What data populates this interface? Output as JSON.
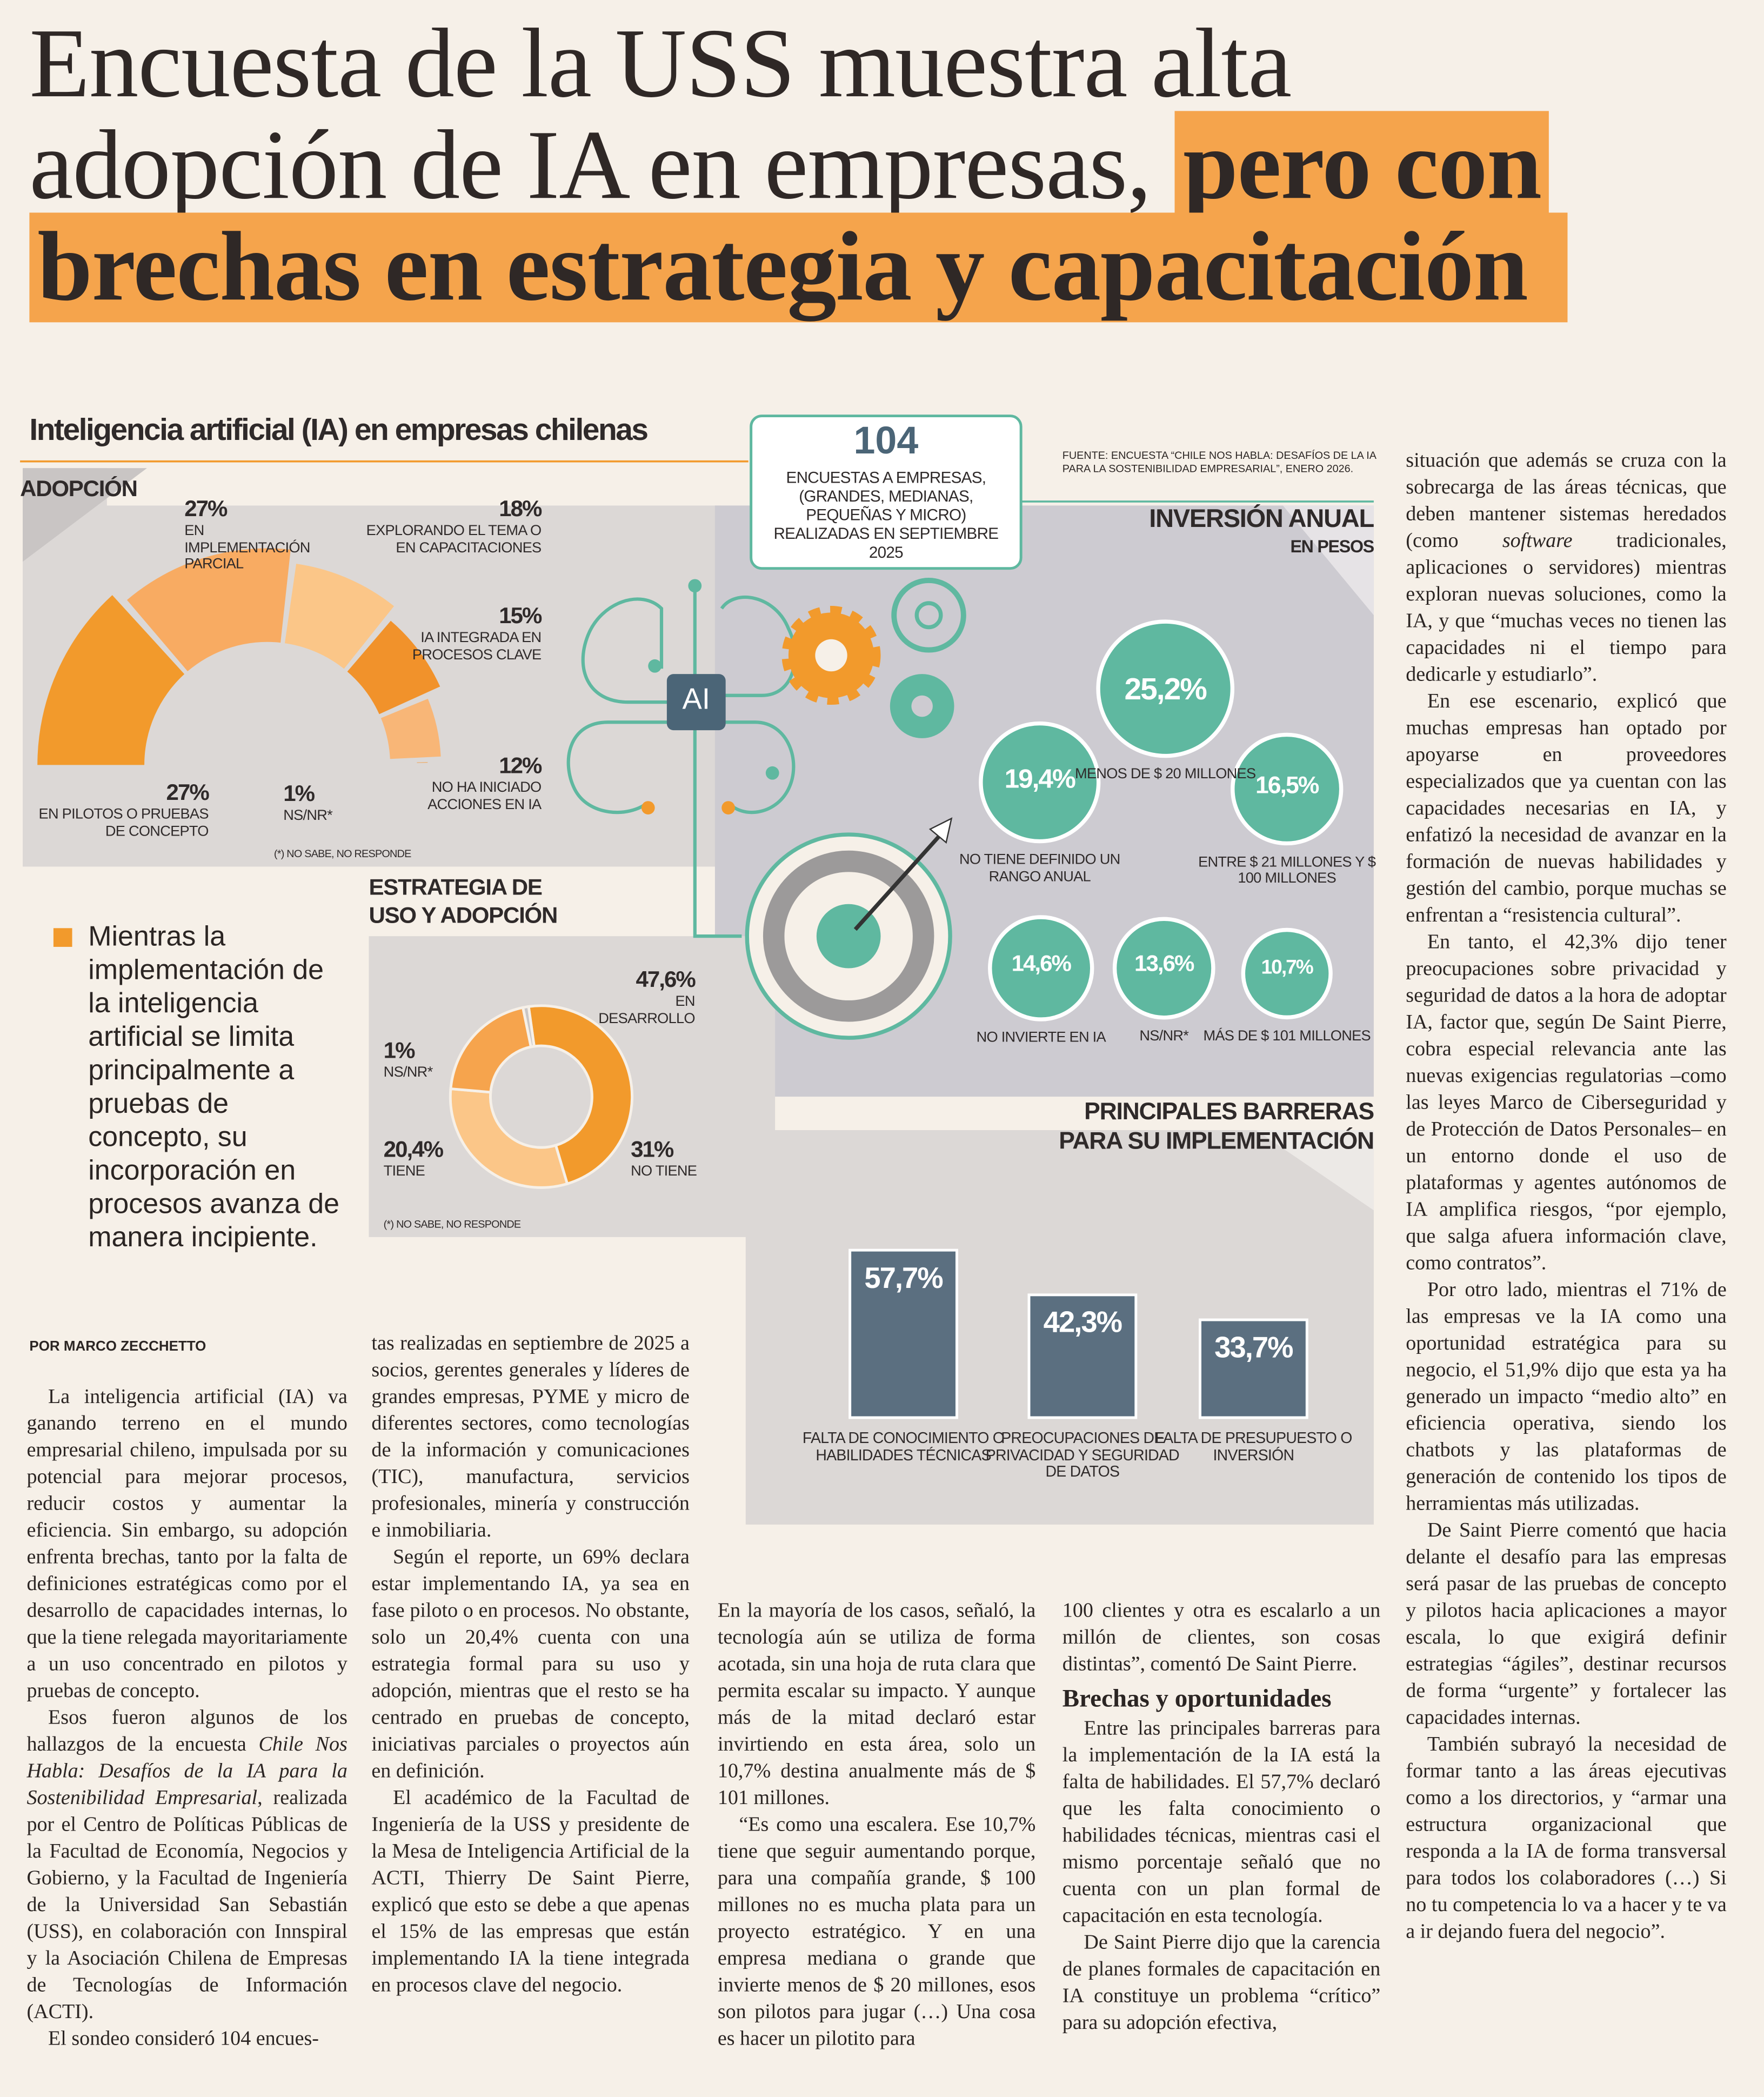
{
  "headline": {
    "lines": [
      "Encuesta de la USS muestra alta",
      "adopción de IA en empresas,"
    ],
    "highlight": [
      "pero con",
      "brechas en estrategia y capacitación"
    ]
  },
  "infographic": {
    "title": "Inteligencia artificial (IA) en empresas chilenas",
    "source": "FUENTE: ENCUESTA “CHILE NOS HABLA: DESAFÍOS DE LA IA PARA LA SOSTENIBILIDAD EMPRESARIAL”, ENERO 2026.",
    "survey": {
      "number": 104,
      "text": "ENCUESTAS A EMPRESAS, (GRANDES, MEDIANAS, PEQUEÑAS Y MICRO) REALIZADAS EN SEPTIEMBRE 2025"
    },
    "ai_label": "AI",
    "adoption": {
      "title": "ADOPCIÓN",
      "values": [
        27,
        27,
        18,
        15,
        12,
        1
      ],
      "value_labels": [
        "27%",
        "27%",
        "18%",
        "15%",
        "12%",
        "1%"
      ],
      "labels": [
        "EN PILOTOS O PRUEBAS DE CONCEPTO",
        "EN IMPLEMENTACIÓN PARCIAL",
        "EXPLORANDO EL TEMA O EN CAPACITACIONES",
        "IA INTEGRADA EN PROCESOS CLAVE",
        "NO HA INICIADO ACCIONES EN IA",
        "NS/NR*"
      ],
      "colors": [
        "#f29a2c",
        "#f8ab62",
        "#fbc688",
        "#f1922b",
        "#f8b677",
        "#f3a04a"
      ],
      "note": "(*) NO SABE, NO RESPONDE"
    },
    "strategy": {
      "title": "ESTRATEGIA DE USO Y ADOPCIÓN",
      "values": [
        47.6,
        31,
        20.4,
        1
      ],
      "value_labels": [
        "47,6%",
        "31%",
        "20,4%",
        "1%"
      ],
      "labels": [
        "EN DESARROLLO",
        "NO TIENE",
        "TIENE",
        "NS/NR*"
      ],
      "colors": [
        "#f29a2c",
        "#fbc688",
        "#f6a44d",
        "#c9c6c6"
      ],
      "note": "(*) NO SABE, NO RESPONDE"
    },
    "investment": {
      "title": "INVERSIÓN ANUAL",
      "subtitle": "EN PESOS",
      "values": [
        25.2,
        19.4,
        16.5,
        14.6,
        13.6,
        10.7
      ],
      "value_labels": [
        "25,2%",
        "19,4%",
        "16,5%",
        "14,6%",
        "13,6%",
        "10,7%"
      ],
      "labels": [
        "MENOS DE $ 20 MILLONES",
        "NO TIENE DEFINIDO UN RANGO ANUAL",
        "ENTRE $ 21 MILLONES Y $ 100 MILLONES",
        "NO INVIERTE EN IA",
        "NS/NR*",
        "MÁS DE $ 101 MILLONES"
      ],
      "color": "#5fb8a0"
    },
    "barriers": {
      "title": "PRINCIPALES BARRERAS PARA SU IMPLEMENTACIÓN",
      "values": [
        57.7,
        42.3,
        33.7
      ],
      "value_labels": [
        "57,7%",
        "42,3%",
        "33,7%"
      ],
      "labels": [
        "FALTA DE CONOCIMIENTO O HABILIDADES TÉCNICAS",
        "PREOCUPACIONES DE PRIVACIDAD Y SEGURIDAD DE DATOS",
        "FALTA DE PRESUPUESTO O INVERSIÓN"
      ],
      "color": "#5b6f80"
    }
  },
  "quote": "Mientras la implementación de la inteligencia artificial se limita principalmente a pruebas de concepto, su incorporación en procesos avanza de manera incipiente.",
  "byline": "POR MARCO ZECCHETTO",
  "body": {
    "columns": [
      {
        "paragraphs": [
          [
            "La inteligencia artificial (IA) va ganando terreno en el mundo empresarial chileno, impulsada por su potencial para mejorar procesos, reducir costos y aumentar la eficiencia. Sin embargo, su adopción enfrenta brechas, tanto por la falta de definiciones estratégicas como por el desarrollo de capacidades internas, lo que la tiene relegada mayoritariamente a un uso concentrado en pilotos y pruebas de concepto."
          ],
          [
            "Esos fueron algunos de los hallazgos de la encuesta ",
            "Chile Nos Habla: Desafíos de la IA para la Sostenibilidad Empresarial",
            ", realizada por el Centro de Políticas Públicas de la Facultad de Economía, Negocios y Gobierno, y la Facultad de Ingeniería de la Universidad San Sebastián (USS), en colaboración con Innspiral y la Asociación Chilena de Empresas de Tecnologías de Información (ACTI)."
          ],
          [
            "El sondeo consideró 104 encues-"
          ]
        ]
      },
      {
        "paragraphs": [
          [
            "tas realizadas en septiembre de 2025 a socios, gerentes generales y líderes de grandes empresas, PYME y micro de diferentes sectores, como tecnologías de la información y comunicaciones (TIC), manufactura, servicios profesionales, minería y construcción e inmobiliaria."
          ],
          [
            "Según el reporte, un 69% declara estar implementando IA, ya sea en fase piloto o en procesos. No obstante, solo un 20,4% cuenta con una estrategia formal para su uso y adopción, mientras que el resto se ha centrado en pruebas de concepto, iniciativas parciales o proyectos aún en definición."
          ],
          [
            "El académico de la Facultad de Ingeniería de la USS y presidente de la Mesa de Inteligencia Artificial de la ACTI, Thierry De Saint Pierre, explicó que esto se debe a que apenas el 15% de las empresas que están implementando IA la tiene integrada en procesos clave del negocio."
          ]
        ]
      },
      {
        "paragraphs": [
          [
            "En la mayoría de los casos, señaló, la tecnología aún se utiliza de forma acotada, sin una hoja de ruta clara que permita escalar su impacto. Y aunque más de la mitad declaró estar invirtiendo en esta área, solo un 10,7% destina anualmente más de $ 101 millones."
          ],
          [
            "“Es como una escalera. Ese 10,7% tiene que seguir aumentando porque, para una compañía grande, $ 100 millones no es mucha plata para un proyecto estratégico. Y en una empresa mediana o grande que invierte menos de $ 20 millones, esos son pilotos para jugar (…) Una cosa es hacer un pilotito para"
          ]
        ]
      },
      {
        "paragraphs": [
          [
            "100 clientes y otra es escalarlo a un millón de clientes, son cosas distintas”, comentó De Saint Pierre."
          ]
        ],
        "subheading": "Brechas y oportunidades",
        "paragraphs_after": [
          [
            "Entre las principales barreras para la implementación de la IA está la falta de habilidades. El 57,7% declaró que les falta conocimiento o habilidades técnicas, mientras casi el mismo porcentaje señaló que no cuenta con un plan formal de capacitación en esta tecnología."
          ],
          [
            "De Saint Pierre dijo que la carencia de planes formales de capacitación en IA constituye un problema “crítico” para su adopción efectiva,"
          ]
        ]
      },
      {
        "paragraphs": [
          [
            "situación que además se cruza con la sobrecarga de las áreas técnicas, que deben mantener sistemas heredados (como ",
            "software",
            " tradicionales, aplicaciones o servidores) mientras exploran nuevas soluciones, como la IA, y que “muchas veces no tienen las capacidades ni el tiempo para dedicarle y estudiarlo”."
          ],
          [
            "En ese escenario, explicó que muchas empresas han optado por apoyarse en proveedores especializados que ya cuentan con las capacidades necesarias en IA, y enfatizó la necesidad de avanzar en la formación de nuevas habilidades y gestión del cambio, porque muchas se enfrentan a “resistencia cultural”."
          ],
          [
            "En tanto, el 42,3% dijo tener preocupaciones sobre privacidad y seguridad de datos a la hora de adoptar IA, factor que, según De Saint Pierre, cobra especial relevancia ante las nuevas exigencias regulatorias –como las leyes Marco de Ciberseguridad y de Protección de Datos Personales– en un entorno donde el uso de plataformas y agentes autónomos de IA amplifica riesgos, “por ejemplo, que salga afuera información clave, como contratos”."
          ],
          [
            "Por otro lado, mientras el 71% de las empresas ve la IA como una oportunidad estratégica para su negocio, el 51,9% dijo que esta ya ha generado un impacto “medio alto” en eficiencia operativa, siendo los chatbots y las plataformas de generación de contenido los tipos de herramientas más utilizadas."
          ],
          [
            "De Saint Pierre comentó que hacia delante el desafío para las empresas será pasar de las pruebas de concepto y pilotos hacia aplicaciones a mayor escala, lo que exigirá definir estrategias “ágiles”, destinar recursos de forma “urgente” y fortalecer las capacidades internas."
          ],
          [
            "También subrayó la necesidad de formar tanto a las áreas ejecutivas como a los directorios, y “armar una estructura organizacional que responda a la IA de forma transversal para todos los colaboradores (…) Si no tu competencia lo va a hacer y te va a ir dejando fuera del negocio”."
          ]
        ]
      }
    ]
  }
}
